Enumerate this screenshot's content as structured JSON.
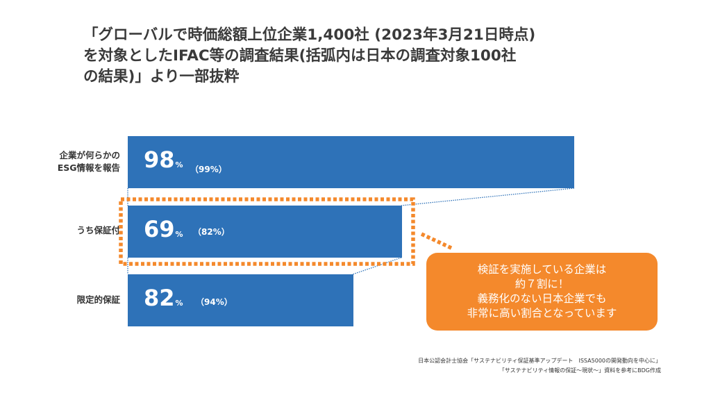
{
  "title": {
    "lines": [
      "「グローバルで時価総額上位企業1,400社 (2023年3月21日時点)",
      "を対象としたIFAC等の調査結果(括弧内は日本の調査対象100社",
      "の結果)」より一部抜粋"
    ]
  },
  "chart_data": {
    "type": "bar",
    "orientation": "horizontal",
    "categories": [
      "企業が何らかのESG情報を報告",
      "うち保証付",
      "限定的保証"
    ],
    "category_label_lines": [
      [
        "企業が何らかの",
        "ESG情報を報告"
      ],
      [
        "うち保証付"
      ],
      [
        "限定的保証"
      ]
    ],
    "series": [
      {
        "values": [
          98,
          69,
          82
        ],
        "color": "#2E72B8"
      }
    ],
    "value_labels": [
      "98",
      "69",
      "82"
    ],
    "unit": "%",
    "japan_values": [
      99,
      82,
      94
    ],
    "japan_labels": [
      "（99%）",
      "（82%）",
      "（94%）"
    ],
    "xlim": [
      0,
      100
    ],
    "grid": false,
    "highlight": {
      "category": "うち保証付",
      "style": "orange dotted box",
      "color": "#F4892C"
    }
  },
  "callout": {
    "lines": [
      "検証を実施している企業は",
      "約７割に！",
      "義務化のない日本企業でも",
      "非常に高い割合となっています"
    ],
    "color": "#F4892C"
  },
  "source": {
    "lines": [
      "日本公認会計士協会「サステナビリティ保証基準アップデート　ISSA5000の開発動向を中心に」",
      "「サステナビリティ情報の保証～現状～」資料を参考にBDG作成"
    ]
  }
}
